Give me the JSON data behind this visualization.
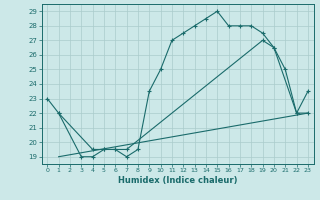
{
  "xlabel": "Humidex (Indice chaleur)",
  "xlim": [
    -0.5,
    23.5
  ],
  "ylim": [
    18.5,
    29.5
  ],
  "yticks": [
    19,
    20,
    21,
    22,
    23,
    24,
    25,
    26,
    27,
    28,
    29
  ],
  "xticks": [
    0,
    1,
    2,
    3,
    4,
    5,
    6,
    7,
    8,
    9,
    10,
    11,
    12,
    13,
    14,
    15,
    16,
    17,
    18,
    19,
    20,
    21,
    22,
    23
  ],
  "bg_color": "#cce8e8",
  "grid_color": "#aacccc",
  "line_color": "#1a6b6b",
  "curve1_x": [
    0,
    1,
    3,
    4,
    5,
    6,
    7,
    8,
    9,
    10,
    11,
    12,
    13,
    14,
    15,
    16,
    17,
    18,
    19,
    20,
    21,
    22,
    23
  ],
  "curve1_y": [
    23.0,
    22.0,
    19.0,
    19.0,
    19.5,
    19.5,
    19.0,
    19.5,
    23.5,
    25.0,
    27.0,
    27.5,
    28.0,
    28.5,
    29.0,
    28.0,
    28.0,
    28.0,
    27.5,
    26.5,
    25.0,
    22.0,
    23.5
  ],
  "curve2_x": [
    1,
    4,
    5,
    6,
    7,
    19,
    20,
    22,
    23
  ],
  "curve2_y": [
    22.0,
    19.5,
    19.5,
    19.5,
    19.5,
    27.0,
    26.5,
    22.0,
    22.0
  ],
  "curve3_x": [
    1,
    23
  ],
  "curve3_y": [
    19.0,
    22.0
  ]
}
